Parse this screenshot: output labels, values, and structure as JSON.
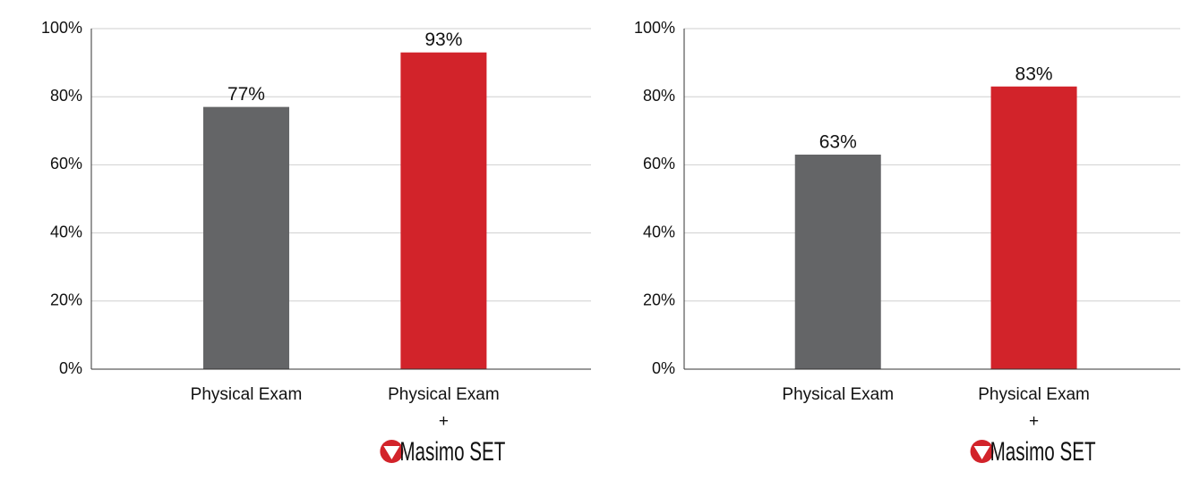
{
  "chart_data": [
    {
      "type": "bar",
      "categories": [
        [
          "Physical Exam"
        ],
        [
          "Physical Exam",
          "+",
          "Masimo SET"
        ]
      ],
      "values": [
        77,
        93
      ],
      "value_labels": [
        "77%",
        "93%"
      ],
      "colors": [
        "#646567",
        "#d2232a"
      ],
      "ylim": [
        0,
        100
      ],
      "yticks": [
        {
          "value": 0,
          "label": "0%"
        },
        {
          "value": 20,
          "label": "20%"
        },
        {
          "value": 40,
          "label": "40%"
        },
        {
          "value": 60,
          "label": "60%"
        },
        {
          "value": 80,
          "label": "80%"
        },
        {
          "value": 100,
          "label": "100%"
        }
      ],
      "grid": true
    },
    {
      "type": "bar",
      "categories": [
        [
          "Physical Exam"
        ],
        [
          "Physical Exam",
          "+",
          "Masimo SET"
        ]
      ],
      "values": [
        63,
        83
      ],
      "value_labels": [
        "63%",
        "83%"
      ],
      "colors": [
        "#646567",
        "#d2232a"
      ],
      "ylim": [
        0,
        100
      ],
      "yticks": [
        {
          "value": 0,
          "label": "0%"
        },
        {
          "value": 20,
          "label": "20%"
        },
        {
          "value": 40,
          "label": "40%"
        },
        {
          "value": 60,
          "label": "60%"
        },
        {
          "value": 80,
          "label": "80%"
        },
        {
          "value": 100,
          "label": "100%"
        }
      ],
      "grid": true
    }
  ]
}
